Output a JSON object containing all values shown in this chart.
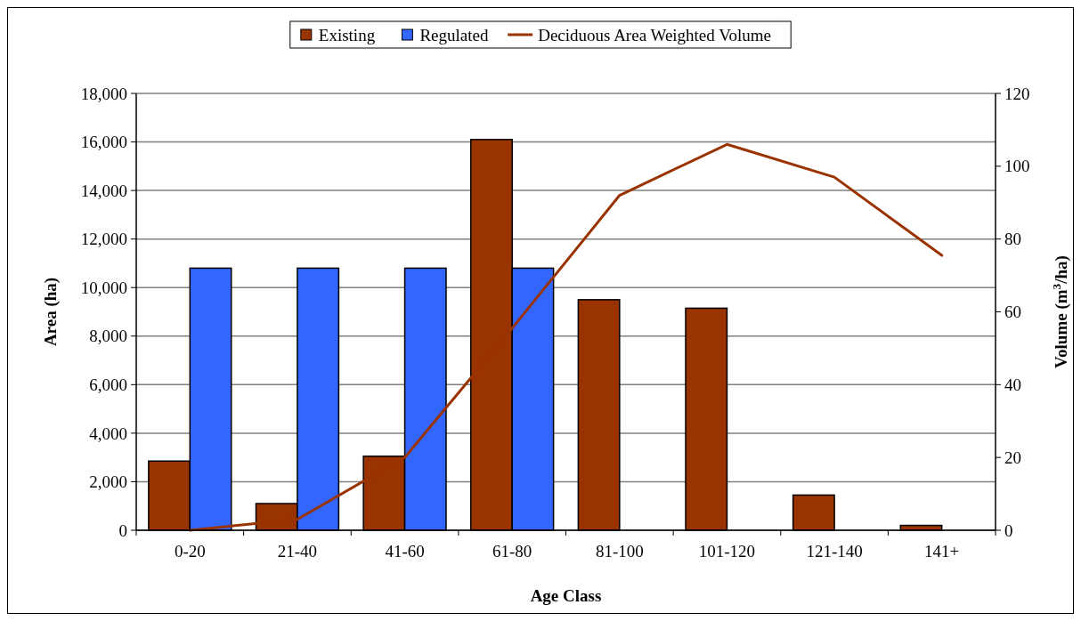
{
  "chart_data": {
    "type": "bar",
    "xlabel": "Age Class",
    "ylabel": "Area (ha)",
    "y2label": "Volume (m$^{3}$/ha)",
    "categories": [
      "0-20",
      "21-40",
      "41-60",
      "61-80",
      "81-100",
      "101-120",
      "121-140",
      "141+"
    ],
    "series": [
      {
        "name": "Existing",
        "color": "#993300",
        "values": [
          2850,
          1100,
          3050,
          16100,
          9500,
          9150,
          1450,
          200
        ]
      },
      {
        "name": "Regulated",
        "color": "#3366ff",
        "values": [
          10800,
          10800,
          10800,
          10800,
          null,
          null,
          null,
          null
        ]
      },
      {
        "name": "Deciduous Area Weighted Volume",
        "type": "line",
        "axis": "y2",
        "color": "#993300",
        "values": [
          0,
          3,
          20,
          55.5,
          92,
          106,
          97,
          75.5
        ]
      }
    ],
    "ylim": [
      0,
      18000
    ],
    "yticks": [
      {
        "value": 0,
        "label": "0"
      },
      {
        "value": 2000,
        "label": "2,000"
      },
      {
        "value": 4000,
        "label": "4,000"
      },
      {
        "value": 6000,
        "label": "6,000"
      },
      {
        "value": 8000,
        "label": "8,000"
      },
      {
        "value": 10000,
        "label": "10,000"
      },
      {
        "value": 12000,
        "label": "12,000"
      },
      {
        "value": 14000,
        "label": "14,000"
      },
      {
        "value": 16000,
        "label": "16,000"
      },
      {
        "value": 18000,
        "label": "18,000"
      }
    ],
    "y2lim": [
      0,
      120
    ],
    "y2ticks": [
      0,
      20,
      40,
      60,
      80,
      100,
      120
    ],
    "grid": "y",
    "legend": "top",
    "marker": "none",
    "line_style": "solid"
  }
}
